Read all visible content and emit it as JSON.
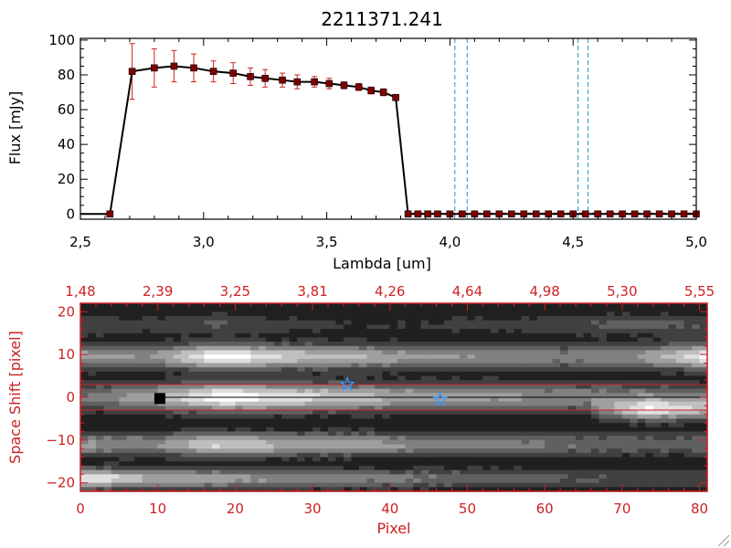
{
  "chart_data": [
    {
      "type": "line",
      "title": "2211371.241",
      "xlabel": "Lambda [um]",
      "ylabel": "Flux [mJy]",
      "xlim": [
        2.5,
        5.0
      ],
      "ylim": [
        -3,
        101
      ],
      "xticks": [
        "2.5",
        "3.0",
        "3.5",
        "4.0",
        "4.5",
        "5.0"
      ],
      "yticks": [
        "0",
        "20",
        "40",
        "60",
        "80",
        "100"
      ],
      "grid": false,
      "colors": {
        "line": "#000000",
        "marker": "#800000",
        "error": "#cc2222",
        "dashed": "#2b8fbf"
      },
      "series": [
        {
          "x": [
            2.5,
            2.62,
            2.71,
            2.8,
            2.88,
            2.96,
            3.04,
            3.12,
            3.19,
            3.25,
            3.32,
            3.38,
            3.45,
            3.51,
            3.57,
            3.63,
            3.68,
            3.73,
            3.78,
            3.83,
            3.87,
            3.91,
            3.95,
            4.0,
            4.05,
            4.1,
            4.15,
            4.2,
            4.25,
            4.3,
            4.35,
            4.4,
            4.45,
            4.5,
            4.55,
            4.6,
            4.65,
            4.7,
            4.75,
            4.8,
            4.85,
            4.9,
            4.95,
            5.0
          ],
          "y": [
            0,
            0,
            82,
            84,
            85,
            84,
            82,
            81,
            79,
            78,
            77,
            76,
            76,
            75,
            74,
            73,
            71,
            70,
            67,
            0,
            0,
            0,
            0,
            0,
            0,
            0,
            0,
            0,
            0,
            0,
            0,
            0,
            0,
            0,
            0,
            0,
            0,
            0,
            0,
            0,
            0,
            0,
            0,
            0
          ],
          "err": [
            0,
            0,
            16,
            11,
            9,
            8,
            6,
            6,
            5,
            5,
            4,
            4,
            3,
            3,
            2,
            2,
            2,
            2,
            1,
            0,
            0,
            0,
            0,
            0,
            0,
            0,
            0,
            0,
            0,
            0,
            0,
            0,
            0,
            0,
            0,
            0,
            0,
            0,
            0,
            0,
            0,
            0,
            0,
            0
          ]
        }
      ],
      "vlines": [
        4.02,
        4.07,
        4.52,
        4.56
      ]
    },
    {
      "type": "heatmap",
      "xlabel": "Pixel",
      "ylabel": "Space Shift [pixel]",
      "xlim": [
        0,
        81
      ],
      "ylim": [
        -22,
        22
      ],
      "xticks": [
        "0",
        "10",
        "20",
        "30",
        "40",
        "50",
        "60",
        "70",
        "80"
      ],
      "yticks": [
        "-20",
        "-10",
        "0",
        "10",
        "20"
      ],
      "top_axis_ticks": [
        "1.48",
        "2.39",
        "3.25",
        "3.81",
        "4.26",
        "4.64",
        "4.98",
        "5.30",
        "5.55"
      ],
      "hlines": [
        3,
        -3
      ],
      "center_line": 0,
      "stars": [
        {
          "x": 34.5,
          "y": 3
        },
        {
          "x": 46.5,
          "y": -0.5
        }
      ],
      "colors": {
        "axis": "#cc2222",
        "hline": "#cc2222",
        "star": "#3399ff"
      },
      "streaks": [
        {
          "y": 0,
          "width": 3.2,
          "x0": 0,
          "x1": 81,
          "peak": 0.6,
          "profile": [
            0.35,
            0.55,
            0.95,
            0.8,
            0.65,
            0.55,
            0.5,
            0.45,
            0.4,
            0.35
          ]
        },
        {
          "y": 9.5,
          "width": 2.8,
          "x0": 0,
          "x1": 81,
          "peak": 0.7,
          "profile": [
            0.55,
            0.45,
            0.95,
            0.7,
            0.6,
            0.5,
            0.45,
            0.4,
            0.45,
            0.9
          ]
        },
        {
          "y": -11,
          "width": 2.6,
          "x0": 0,
          "x1": 81,
          "peak": 0.6,
          "profile": [
            0.5,
            0.45,
            0.75,
            0.6,
            0.55,
            0.45,
            0.4,
            0.35,
            0.3,
            0.3
          ]
        },
        {
          "y": -19,
          "width": 2.2,
          "x0": 0,
          "x1": 81,
          "peak": 0.55,
          "profile": [
            0.9,
            0.6,
            0.55,
            0.45,
            0.4,
            0.35,
            0.3,
            0.25,
            0.2,
            0.2
          ]
        },
        {
          "y": -3,
          "width": 2.4,
          "x0": 66,
          "x1": 81,
          "peak": 0.55,
          "profile": [
            0.2,
            0.7,
            0.5
          ]
        },
        {
          "y": 17,
          "width": 2.4,
          "x0": 0,
          "x1": 81,
          "peak": 0.25,
          "profile": [
            0.2,
            0.15,
            0.25,
            0.15,
            0.1,
            0.1,
            0.15,
            0.2,
            0.3,
            0.2
          ]
        }
      ],
      "dark_blob": {
        "x": 10.5,
        "y": -0.5
      }
    }
  ]
}
